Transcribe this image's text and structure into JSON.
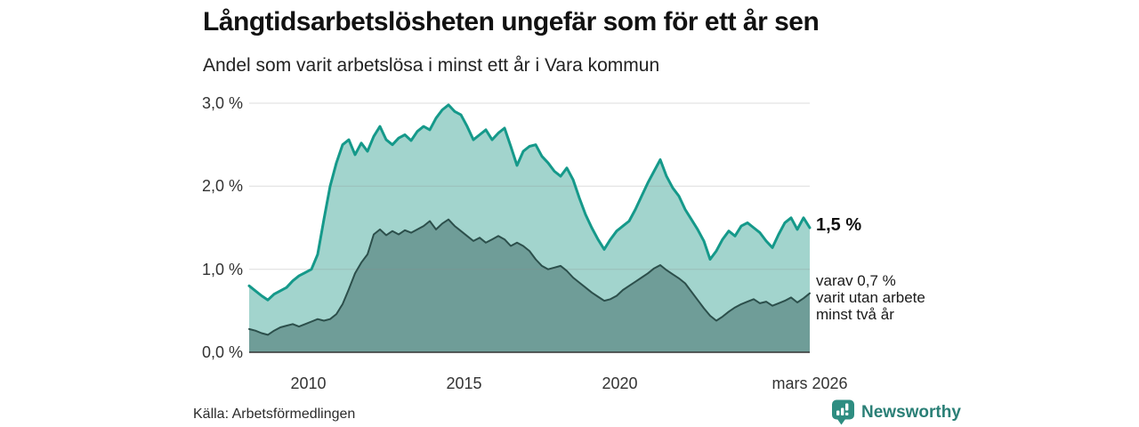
{
  "footer": {
    "source": "Källa: Arbetsförmedlingen",
    "brand": "Newsworthy"
  },
  "annotations": {
    "end_value": "1,5 %",
    "sub_lines": [
      "varav 0,7 %",
      "varit utan arbete",
      "minst två år"
    ]
  },
  "colors": {
    "series1_line": "#15998a",
    "series1_fill": "#a2d4cd",
    "series2_line": "#2c4f4b",
    "series2_fill": "#6f9d98",
    "grid": "#8c8c8c",
    "baseline": "#333333",
    "brand_teal": "#2e8d81"
  },
  "chart_data": {
    "type": "area",
    "title": "Långtidsarbetslösheten ungefär som för ett år sen",
    "subtitle": "Andel som varit arbetslösa i minst ett år i Vara kommun",
    "xlabel": "",
    "ylabel": "",
    "ylim": [
      0,
      3
    ],
    "x_domain": [
      2008.1,
      2026.1
    ],
    "grid": true,
    "legend_position": "right-annotations",
    "y_ticks": [
      {
        "value": 0,
        "label": "0,0 %"
      },
      {
        "value": 1,
        "label": "1,0 %"
      },
      {
        "value": 2,
        "label": "2,0 %"
      },
      {
        "value": 3,
        "label": "3,0 %"
      }
    ],
    "x_ticks": [
      {
        "value": 2010,
        "label": "2010"
      },
      {
        "value": 2015,
        "label": "2015"
      },
      {
        "value": 2020,
        "label": "2020"
      },
      {
        "value": 2026.1,
        "label": "mars 2026"
      }
    ],
    "x": [
      2008.1,
      2008.3,
      2008.5,
      2008.7,
      2008.9,
      2009.1,
      2009.3,
      2009.5,
      2009.7,
      2009.9,
      2010.1,
      2010.3,
      2010.5,
      2010.7,
      2010.9,
      2011.1,
      2011.3,
      2011.5,
      2011.7,
      2011.9,
      2012.1,
      2012.3,
      2012.5,
      2012.7,
      2012.9,
      2013.1,
      2013.3,
      2013.5,
      2013.7,
      2013.9,
      2014.1,
      2014.3,
      2014.5,
      2014.7,
      2014.9,
      2015.1,
      2015.3,
      2015.5,
      2015.7,
      2015.9,
      2016.1,
      2016.3,
      2016.5,
      2016.7,
      2016.9,
      2017.1,
      2017.3,
      2017.5,
      2017.7,
      2017.9,
      2018.1,
      2018.3,
      2018.5,
      2018.7,
      2018.9,
      2019.1,
      2019.3,
      2019.5,
      2019.7,
      2019.9,
      2020.1,
      2020.3,
      2020.5,
      2020.7,
      2020.9,
      2021.1,
      2021.3,
      2021.5,
      2021.7,
      2021.9,
      2022.1,
      2022.3,
      2022.5,
      2022.7,
      2022.9,
      2023.1,
      2023.3,
      2023.5,
      2023.7,
      2023.9,
      2024.1,
      2024.3,
      2024.5,
      2024.7,
      2024.9,
      2025.1,
      2025.3,
      2025.5,
      2025.7,
      2025.9,
      2026.1
    ],
    "series": [
      {
        "name": "Andel arbetslösa minst ett år",
        "end_value_pct": 1.5,
        "values": [
          0.8,
          0.74,
          0.68,
          0.63,
          0.7,
          0.74,
          0.78,
          0.86,
          0.92,
          0.96,
          1.0,
          1.18,
          1.6,
          2.0,
          2.28,
          2.5,
          2.56,
          2.38,
          2.52,
          2.42,
          2.6,
          2.72,
          2.56,
          2.5,
          2.58,
          2.62,
          2.55,
          2.66,
          2.72,
          2.68,
          2.82,
          2.92,
          2.98,
          2.9,
          2.86,
          2.72,
          2.56,
          2.62,
          2.68,
          2.56,
          2.64,
          2.7,
          2.48,
          2.25,
          2.42,
          2.48,
          2.5,
          2.36,
          2.28,
          2.18,
          2.12,
          2.22,
          2.08,
          1.86,
          1.66,
          1.5,
          1.36,
          1.24,
          1.36,
          1.46,
          1.52,
          1.58,
          1.72,
          1.88,
          2.04,
          2.18,
          2.32,
          2.12,
          1.98,
          1.88,
          1.72,
          1.6,
          1.48,
          1.34,
          1.12,
          1.22,
          1.36,
          1.46,
          1.4,
          1.52,
          1.56,
          1.5,
          1.44,
          1.34,
          1.26,
          1.42,
          1.56,
          1.62,
          1.48,
          1.62,
          1.5
        ]
      },
      {
        "name": "varav utan arbete minst två år",
        "end_value_pct": 0.7,
        "values": [
          0.28,
          0.26,
          0.23,
          0.21,
          0.26,
          0.3,
          0.32,
          0.34,
          0.31,
          0.34,
          0.37,
          0.4,
          0.38,
          0.4,
          0.46,
          0.58,
          0.76,
          0.95,
          1.08,
          1.18,
          1.42,
          1.48,
          1.41,
          1.46,
          1.42,
          1.47,
          1.44,
          1.48,
          1.52,
          1.58,
          1.48,
          1.55,
          1.6,
          1.52,
          1.46,
          1.4,
          1.34,
          1.38,
          1.32,
          1.36,
          1.4,
          1.36,
          1.28,
          1.32,
          1.28,
          1.22,
          1.12,
          1.04,
          1.0,
          1.02,
          1.04,
          0.98,
          0.9,
          0.84,
          0.78,
          0.72,
          0.67,
          0.62,
          0.64,
          0.68,
          0.75,
          0.8,
          0.85,
          0.9,
          0.95,
          1.01,
          1.05,
          0.99,
          0.94,
          0.89,
          0.83,
          0.73,
          0.63,
          0.53,
          0.44,
          0.38,
          0.43,
          0.49,
          0.54,
          0.58,
          0.61,
          0.64,
          0.59,
          0.61,
          0.56,
          0.59,
          0.62,
          0.66,
          0.6,
          0.65,
          0.71
        ]
      }
    ]
  }
}
